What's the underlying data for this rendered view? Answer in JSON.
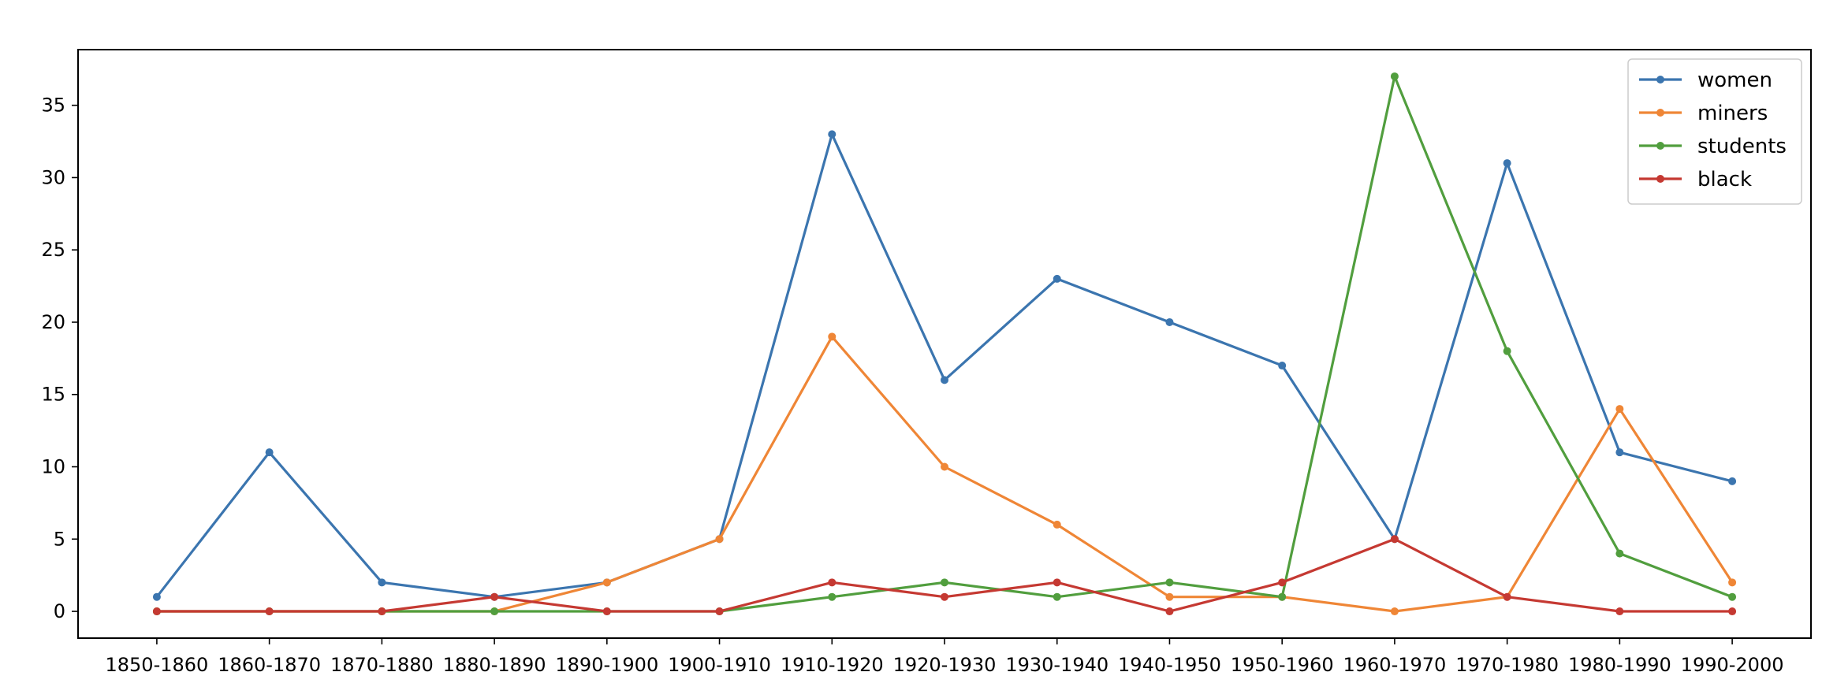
{
  "chart_data": {
    "type": "line",
    "title": "",
    "xlabel": "",
    "ylabel": "",
    "categories": [
      "1850-1860",
      "1860-1870",
      "1870-1880",
      "1880-1890",
      "1890-1900",
      "1900-1910",
      "1910-1920",
      "1920-1930",
      "1930-1940",
      "1940-1950",
      "1950-1960",
      "1960-1970",
      "1970-1980",
      "1980-1990",
      "1990-2000"
    ],
    "ylim": [
      -1.85,
      38.85
    ],
    "yticks": [
      0,
      5,
      10,
      15,
      20,
      25,
      30,
      35
    ],
    "grid": false,
    "legend_position": "top-right",
    "series": [
      {
        "name": "women",
        "color": "#3b75af",
        "values": [
          1,
          11,
          2,
          1,
          2,
          5,
          33,
          16,
          23,
          20,
          17,
          5,
          31,
          11,
          9
        ]
      },
      {
        "name": "miners",
        "color": "#ef8636",
        "values": [
          0,
          0,
          0,
          0,
          2,
          5,
          19,
          10,
          6,
          1,
          1,
          0,
          1,
          14,
          2
        ]
      },
      {
        "name": "students",
        "color": "#519e3e",
        "values": [
          0,
          0,
          0,
          0,
          0,
          0,
          1,
          2,
          1,
          2,
          1,
          37,
          18,
          4,
          1
        ]
      },
      {
        "name": "black",
        "color": "#c53932",
        "values": [
          0,
          0,
          0,
          1,
          0,
          0,
          2,
          1,
          2,
          0,
          2,
          5,
          1,
          0,
          0
        ]
      }
    ]
  }
}
